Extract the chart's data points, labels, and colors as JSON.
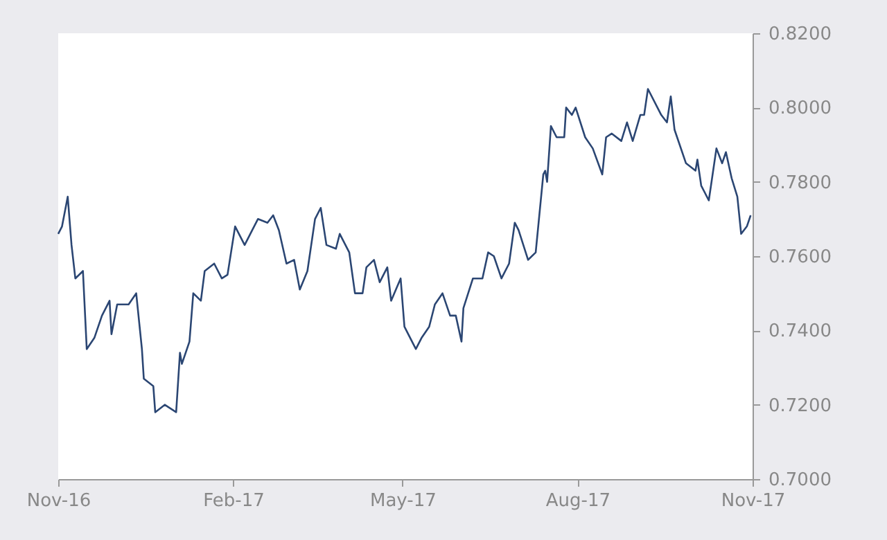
{
  "chart_data": {
    "type": "line",
    "x": [
      "2016-11-01",
      "2016-11-03",
      "2016-11-06",
      "2016-11-08",
      "2016-11-10",
      "2016-11-14",
      "2016-11-16",
      "2016-11-20",
      "2016-11-24",
      "2016-11-28",
      "2016-11-29",
      "2016-12-02",
      "2016-12-08",
      "2016-12-12",
      "2016-12-15",
      "2016-12-16",
      "2016-12-21",
      "2016-12-22",
      "2016-12-27",
      "2017-01-02",
      "2017-01-04",
      "2017-01-05",
      "2017-01-09",
      "2017-01-11",
      "2017-01-15",
      "2017-01-17",
      "2017-01-22",
      "2017-01-26",
      "2017-01-29",
      "2017-02-02",
      "2017-02-07",
      "2017-02-11",
      "2017-02-14",
      "2017-02-19",
      "2017-02-22",
      "2017-02-25",
      "2017-03-01",
      "2017-03-05",
      "2017-03-08",
      "2017-03-12",
      "2017-03-16",
      "2017-03-19",
      "2017-03-22",
      "2017-03-27",
      "2017-03-29",
      "2017-04-03",
      "2017-04-06",
      "2017-04-10",
      "2017-04-12",
      "2017-04-16",
      "2017-04-19",
      "2017-04-23",
      "2017-04-25",
      "2017-04-30",
      "2017-05-02",
      "2017-05-08",
      "2017-05-11",
      "2017-05-15",
      "2017-05-18",
      "2017-05-22",
      "2017-05-26",
      "2017-05-29",
      "2017-06-01",
      "2017-06-02",
      "2017-06-07",
      "2017-06-12",
      "2017-06-15",
      "2017-06-18",
      "2017-06-22",
      "2017-06-26",
      "2017-06-29",
      "2017-07-01",
      "2017-07-06",
      "2017-07-10",
      "2017-07-14",
      "2017-07-15",
      "2017-07-16",
      "2017-07-18",
      "2017-07-21",
      "2017-07-25",
      "2017-07-26",
      "2017-07-29",
      "2017-07-31",
      "2017-08-05",
      "2017-08-09",
      "2017-08-14",
      "2017-08-16",
      "2017-08-19",
      "2017-08-24",
      "2017-08-27",
      "2017-08-30",
      "2017-09-03",
      "2017-09-05",
      "2017-09-07",
      "2017-09-12",
      "2017-09-14",
      "2017-09-17",
      "2017-09-19",
      "2017-09-21",
      "2017-09-27",
      "2017-10-02",
      "2017-10-03",
      "2017-10-05",
      "2017-10-09",
      "2017-10-13",
      "2017-10-16",
      "2017-10-18",
      "2017-10-21",
      "2017-10-24",
      "2017-10-26",
      "2017-10-29",
      "2017-10-31"
    ],
    "series": [
      {
        "color": "#2b4673",
        "values": [
          0.766,
          0.768,
          0.776,
          0.763,
          0.754,
          0.756,
          0.735,
          0.738,
          0.744,
          0.748,
          0.739,
          0.747,
          0.747,
          0.75,
          0.735,
          0.727,
          0.725,
          0.718,
          0.72,
          0.718,
          0.734,
          0.731,
          0.737,
          0.75,
          0.748,
          0.756,
          0.758,
          0.754,
          0.755,
          0.768,
          0.763,
          0.767,
          0.77,
          0.769,
          0.771,
          0.767,
          0.758,
          0.759,
          0.751,
          0.756,
          0.77,
          0.773,
          0.763,
          0.762,
          0.766,
          0.761,
          0.75,
          0.75,
          0.757,
          0.759,
          0.753,
          0.757,
          0.748,
          0.754,
          0.741,
          0.735,
          0.738,
          0.741,
          0.747,
          0.75,
          0.744,
          0.744,
          0.737,
          0.746,
          0.754,
          0.754,
          0.761,
          0.76,
          0.754,
          0.758,
          0.769,
          0.767,
          0.759,
          0.761,
          0.782,
          0.783,
          0.78,
          0.795,
          0.792,
          0.792,
          0.8,
          0.798,
          0.8,
          0.792,
          0.789,
          0.782,
          0.792,
          0.793,
          0.791,
          0.796,
          0.791,
          0.798,
          0.798,
          0.805,
          0.8,
          0.798,
          0.796,
          0.803,
          0.794,
          0.785,
          0.783,
          0.786,
          0.779,
          0.775,
          0.789,
          0.785,
          0.788,
          0.781,
          0.776,
          0.766,
          0.768,
          0.771
        ]
      }
    ],
    "xlim": [
      "2016-11-01",
      "2017-11-01"
    ],
    "xticks": [
      {
        "value": "2016-11-01",
        "label": "Nov-16"
      },
      {
        "value": "2017-02-01",
        "label": "Feb-17"
      },
      {
        "value": "2017-05-01",
        "label": "May-17"
      },
      {
        "value": "2017-08-01",
        "label": "Aug-17"
      },
      {
        "value": "2017-11-01",
        "label": "Nov-17"
      }
    ],
    "ylim": [
      0.7,
      0.82
    ],
    "yticks": [
      {
        "value": 0.7,
        "label": "0.7000"
      },
      {
        "value": 0.72,
        "label": "0.7200"
      },
      {
        "value": 0.74,
        "label": "0.7400"
      },
      {
        "value": 0.76,
        "label": "0.7600"
      },
      {
        "value": 0.78,
        "label": "0.7800"
      },
      {
        "value": 0.8,
        "label": "0.8000"
      },
      {
        "value": 0.82,
        "label": "0.8200"
      }
    ],
    "grid": false,
    "legend": false,
    "marker": "none",
    "line_style": "solid"
  }
}
